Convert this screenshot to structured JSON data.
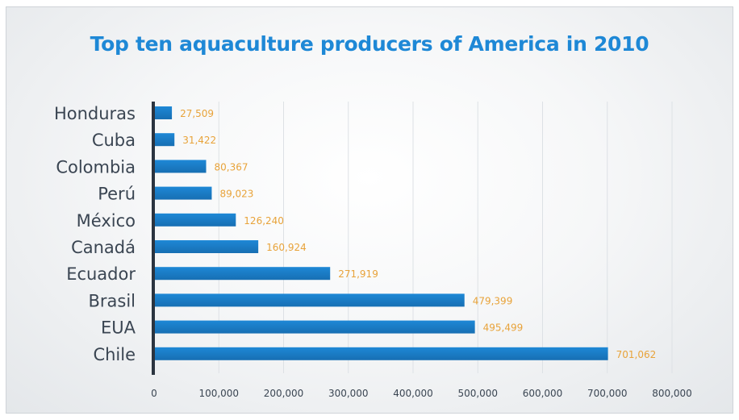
{
  "chart_data": {
    "type": "bar",
    "orientation": "horizontal",
    "title": "Top ten aquaculture producers of America in 2010",
    "xlabel": "",
    "ylabel": "",
    "categories": [
      "Honduras",
      "Cuba",
      "Colombia",
      "Perú",
      "México",
      "Canadá",
      "Ecuador",
      "Brasil",
      "EUA",
      "Chile"
    ],
    "values": [
      27509,
      31422,
      80367,
      89023,
      126240,
      160924,
      271919,
      479399,
      495499,
      701062
    ],
    "value_labels": [
      "27,509",
      "31,422",
      "80,367",
      "89,023",
      "126,240",
      "160,924",
      "271,919",
      "479,399",
      "495,499",
      "701,062"
    ],
    "xlim": [
      0,
      800000
    ],
    "x_ticks": [
      0,
      100000,
      200000,
      300000,
      400000,
      500000,
      600000,
      700000,
      800000
    ],
    "x_tick_labels": [
      "0",
      "100,000",
      "200,000",
      "300,000",
      "400,000",
      "500,000",
      "600,000",
      "700,000",
      "800,000"
    ],
    "grid": true,
    "legend": "none",
    "colors": {
      "bar": "#1e88d6",
      "bar_dark": "#176fb3",
      "value_label": "#e8a33a",
      "category_label": "#3a4552",
      "title": "#1e88d6",
      "axis": "#2b3440",
      "grid": "#dde1e5"
    }
  }
}
